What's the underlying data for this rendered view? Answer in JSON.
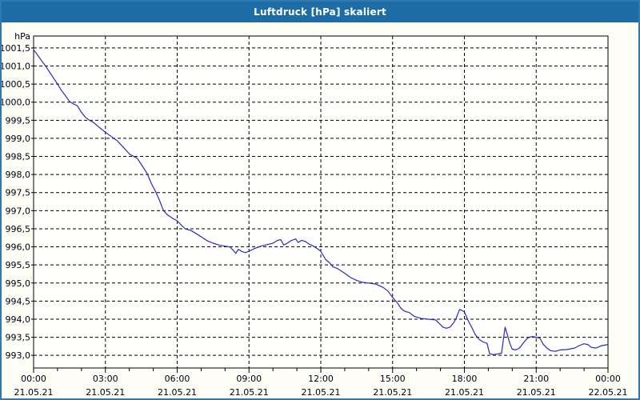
{
  "window": {
    "title": "Luftdruck [hPa] skaliert"
  },
  "colors": {
    "titlebar": "#1d6ca6",
    "window_border": "#2f7ab0",
    "window_background": "#fdfdf6",
    "plot_background": "#fffffd",
    "grid": "#000000",
    "axis": "#000000",
    "line": "#2a2ac0",
    "title_text": "#ffffff",
    "label_text": "#000014"
  },
  "chart_data": {
    "type": "line",
    "title": "Luftdruck [hPa] skaliert",
    "ylabel": "hPa",
    "unit_label": "hPa",
    "grid": "dashed",
    "legend": "none",
    "ylim": [
      992.65,
      1001.83
    ],
    "xlim_hours": [
      0,
      24
    ],
    "yticks": [
      {
        "value": 1001.5,
        "label": "1001,5"
      },
      {
        "value": 1001.0,
        "label": "1001,0"
      },
      {
        "value": 1000.5,
        "label": "1000,5"
      },
      {
        "value": 1000.0,
        "label": "1000,0"
      },
      {
        "value": 999.5,
        "label": "999,5"
      },
      {
        "value": 999.0,
        "label": "999,0"
      },
      {
        "value": 998.5,
        "label": "998,5"
      },
      {
        "value": 998.0,
        "label": "998,0"
      },
      {
        "value": 997.5,
        "label": "997,5"
      },
      {
        "value": 997.0,
        "label": "997,0"
      },
      {
        "value": 996.5,
        "label": "996,5"
      },
      {
        "value": 996.0,
        "label": "996,0"
      },
      {
        "value": 995.5,
        "label": "995,5"
      },
      {
        "value": 995.0,
        "label": "995,0"
      },
      {
        "value": 994.5,
        "label": "994,5"
      },
      {
        "value": 994.0,
        "label": "994,0"
      },
      {
        "value": 993.5,
        "label": "993,5"
      },
      {
        "value": 993.0,
        "label": "993,0"
      }
    ],
    "xticks": [
      {
        "hour": 0,
        "time": "00:00",
        "date": "21.05.21"
      },
      {
        "hour": 3,
        "time": "03:00",
        "date": "21.05.21"
      },
      {
        "hour": 6,
        "time": "06:00",
        "date": "21.05.21"
      },
      {
        "hour": 9,
        "time": "09:00",
        "date": "21.05.21"
      },
      {
        "hour": 12,
        "time": "12:00",
        "date": "21.05.21"
      },
      {
        "hour": 15,
        "time": "15:00",
        "date": "21.05.21"
      },
      {
        "hour": 18,
        "time": "18:00",
        "date": "21.05.21"
      },
      {
        "hour": 21,
        "time": "21:00",
        "date": "21.05.21"
      },
      {
        "hour": 24,
        "time": "00:00",
        "date": "22.05.21"
      }
    ],
    "minor_tick_hours": [
      1,
      2,
      4,
      5,
      7,
      8,
      10,
      11,
      13,
      14,
      16,
      17,
      19,
      20,
      22,
      23
    ],
    "series": [
      {
        "name": "Luftdruck",
        "points": [
          [
            0.0,
            1001.45
          ],
          [
            0.17,
            1001.3
          ],
          [
            0.33,
            1001.15
          ],
          [
            0.5,
            1001.0
          ],
          [
            0.75,
            1000.75
          ],
          [
            1.0,
            1000.5
          ],
          [
            1.17,
            1000.32
          ],
          [
            1.33,
            1000.18
          ],
          [
            1.5,
            1000.02
          ],
          [
            1.67,
            999.95
          ],
          [
            1.83,
            999.9
          ],
          [
            2.0,
            999.72
          ],
          [
            2.17,
            999.58
          ],
          [
            2.33,
            999.5
          ],
          [
            2.5,
            999.44
          ],
          [
            2.75,
            999.3
          ],
          [
            3.0,
            999.17
          ],
          [
            3.25,
            999.05
          ],
          [
            3.5,
            998.93
          ],
          [
            3.75,
            998.75
          ],
          [
            4.0,
            998.57
          ],
          [
            4.17,
            998.5
          ],
          [
            4.33,
            998.45
          ],
          [
            4.5,
            998.28
          ],
          [
            4.75,
            998.02
          ],
          [
            4.92,
            997.75
          ],
          [
            5.08,
            997.55
          ],
          [
            5.25,
            997.3
          ],
          [
            5.43,
            997.0
          ],
          [
            5.6,
            996.88
          ],
          [
            5.83,
            996.78
          ],
          [
            6.0,
            996.72
          ],
          [
            6.17,
            996.6
          ],
          [
            6.33,
            996.5
          ],
          [
            6.58,
            996.45
          ],
          [
            6.83,
            996.35
          ],
          [
            7.0,
            996.28
          ],
          [
            7.25,
            996.17
          ],
          [
            7.5,
            996.1
          ],
          [
            7.75,
            996.05
          ],
          [
            8.0,
            996.02
          ],
          [
            8.2,
            996.0
          ],
          [
            8.35,
            995.9
          ],
          [
            8.45,
            995.82
          ],
          [
            8.55,
            995.93
          ],
          [
            8.7,
            995.87
          ],
          [
            8.85,
            995.84
          ],
          [
            9.0,
            995.88
          ],
          [
            9.25,
            995.96
          ],
          [
            9.5,
            996.02
          ],
          [
            9.75,
            996.06
          ],
          [
            10.0,
            996.1
          ],
          [
            10.2,
            996.18
          ],
          [
            10.33,
            996.2
          ],
          [
            10.45,
            996.05
          ],
          [
            10.6,
            996.1
          ],
          [
            10.75,
            996.17
          ],
          [
            10.95,
            996.22
          ],
          [
            11.05,
            996.12
          ],
          [
            11.2,
            996.18
          ],
          [
            11.35,
            996.15
          ],
          [
            11.5,
            996.08
          ],
          [
            11.75,
            996.0
          ],
          [
            12.0,
            995.88
          ],
          [
            12.2,
            995.65
          ],
          [
            12.35,
            995.57
          ],
          [
            12.5,
            995.45
          ],
          [
            12.7,
            995.4
          ],
          [
            13.0,
            995.27
          ],
          [
            13.25,
            995.15
          ],
          [
            13.5,
            995.07
          ],
          [
            13.75,
            995.02
          ],
          [
            14.0,
            995.0
          ],
          [
            14.3,
            994.97
          ],
          [
            14.6,
            994.88
          ],
          [
            14.8,
            994.78
          ],
          [
            15.0,
            994.6
          ],
          [
            15.2,
            994.45
          ],
          [
            15.35,
            994.3
          ],
          [
            15.5,
            994.22
          ],
          [
            15.7,
            994.18
          ],
          [
            15.9,
            994.08
          ],
          [
            16.2,
            994.02
          ],
          [
            16.5,
            994.0
          ],
          [
            16.8,
            993.98
          ],
          [
            17.0,
            993.85
          ],
          [
            17.1,
            993.78
          ],
          [
            17.25,
            993.75
          ],
          [
            17.4,
            993.78
          ],
          [
            17.55,
            993.9
          ],
          [
            17.65,
            994.02
          ],
          [
            17.8,
            994.27
          ],
          [
            17.9,
            994.24
          ],
          [
            18.0,
            994.2
          ],
          [
            18.15,
            993.97
          ],
          [
            18.3,
            993.78
          ],
          [
            18.45,
            993.58
          ],
          [
            18.6,
            993.45
          ],
          [
            18.75,
            993.38
          ],
          [
            18.95,
            993.33
          ],
          [
            19.05,
            993.05
          ],
          [
            19.2,
            993.02
          ],
          [
            19.4,
            993.04
          ],
          [
            19.55,
            993.06
          ],
          [
            19.63,
            993.45
          ],
          [
            19.7,
            993.78
          ],
          [
            19.8,
            993.55
          ],
          [
            19.9,
            993.33
          ],
          [
            20.0,
            993.17
          ],
          [
            20.15,
            993.15
          ],
          [
            20.3,
            993.2
          ],
          [
            20.45,
            993.33
          ],
          [
            20.6,
            993.45
          ],
          [
            20.7,
            993.5
          ],
          [
            20.85,
            993.52
          ],
          [
            21.0,
            993.5
          ],
          [
            21.15,
            993.48
          ],
          [
            21.3,
            993.3
          ],
          [
            21.45,
            993.2
          ],
          [
            21.6,
            993.13
          ],
          [
            21.8,
            993.11
          ],
          [
            22.0,
            993.15
          ],
          [
            22.3,
            993.16
          ],
          [
            22.6,
            993.2
          ],
          [
            22.8,
            993.27
          ],
          [
            23.0,
            993.32
          ],
          [
            23.15,
            993.3
          ],
          [
            23.3,
            993.22
          ],
          [
            23.5,
            993.2
          ],
          [
            23.7,
            993.26
          ],
          [
            24.0,
            993.3
          ]
        ]
      }
    ]
  }
}
